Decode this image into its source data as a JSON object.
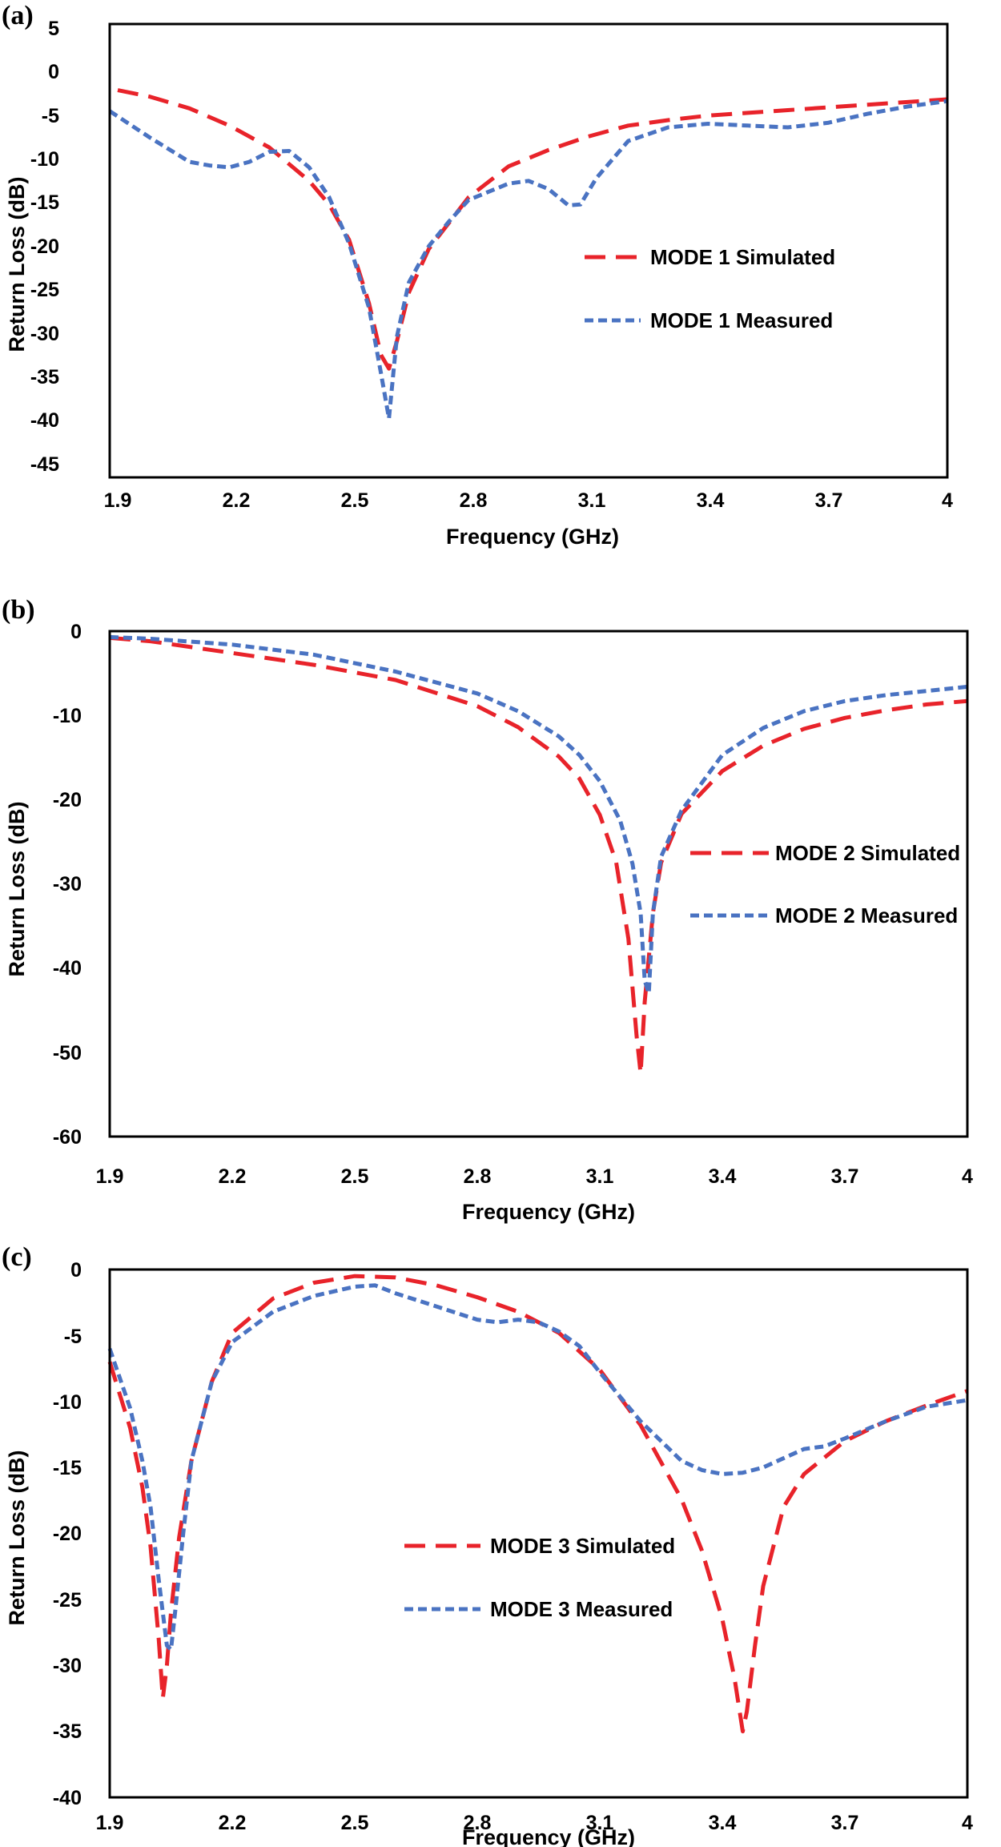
{
  "colors": {
    "simulated": "#e8232a",
    "measured": "#4a73c2",
    "axis": "#000000"
  },
  "chart_data": [
    {
      "type": "line",
      "panel_label": "(a)",
      "xlabel": "Frequency (GHz)",
      "ylabel": "Return Loss (dB)",
      "xlim": [
        1.9,
        4.0
      ],
      "ylim": [
        -45,
        5
      ],
      "xticks": [
        1.9,
        2.2,
        2.5,
        2.8,
        3.1,
        3.4,
        3.7,
        4.0
      ],
      "xtick_labels": [
        "1.9",
        "2.2",
        "2.5",
        "2.8",
        "3.1",
        "3.4",
        "3.7",
        "4"
      ],
      "yticks": [
        5,
        0,
        -5,
        -10,
        -15,
        -20,
        -25,
        -30,
        -35,
        -40,
        -45
      ],
      "ytick_labels": [
        "5",
        "0",
        "-5",
        "-10",
        "-15",
        "-20",
        "-25",
        "-30",
        "-35",
        "-40",
        "-45"
      ],
      "grid": false,
      "legend_position": "right-middle",
      "series": [
        {
          "name": "MODE 1 Simulated",
          "style": "dashed-long",
          "color": "#e8232a",
          "x": [
            1.92,
            2.0,
            2.1,
            2.2,
            2.3,
            2.4,
            2.45,
            2.5,
            2.55,
            2.58,
            2.6,
            2.62,
            2.65,
            2.7,
            2.8,
            2.9,
            3.0,
            3.1,
            3.2,
            3.3,
            3.4,
            3.5,
            3.6,
            3.7,
            3.8,
            3.9,
            4.0
          ],
          "y": [
            -2.3,
            -3.0,
            -4.3,
            -6.2,
            -8.6,
            -12.3,
            -14.9,
            -18.8,
            -25.8,
            -31.5,
            -33.0,
            -30.0,
            -24.6,
            -19.8,
            -14.1,
            -10.7,
            -8.9,
            -7.4,
            -6.2,
            -5.6,
            -5.1,
            -4.8,
            -4.5,
            -4.2,
            -3.9,
            -3.6,
            -3.3
          ]
        },
        {
          "name": "MODE 1 Measured",
          "style": "dashed-short",
          "color": "#4a73c2",
          "x": [
            1.9,
            2.0,
            2.1,
            2.15,
            2.2,
            2.25,
            2.3,
            2.35,
            2.4,
            2.45,
            2.5,
            2.55,
            2.58,
            2.6,
            2.62,
            2.65,
            2.7,
            2.75,
            2.8,
            2.9,
            2.95,
            3.0,
            3.05,
            3.08,
            3.12,
            3.2,
            3.3,
            3.4,
            3.5,
            3.6,
            3.7,
            3.8,
            3.9,
            4.0
          ],
          "y": [
            -4.6,
            -7.5,
            -10.2,
            -10.6,
            -10.8,
            -10.2,
            -9.1,
            -9.0,
            -10.8,
            -14.1,
            -19.2,
            -26.3,
            -33.5,
            -38.5,
            -29.5,
            -23.5,
            -19.5,
            -16.8,
            -14.4,
            -12.6,
            -12.3,
            -13.2,
            -15.0,
            -14.9,
            -12.0,
            -7.9,
            -6.4,
            -6.0,
            -6.2,
            -6.4,
            -5.9,
            -4.9,
            -4.1,
            -3.5
          ]
        }
      ]
    },
    {
      "type": "line",
      "panel_label": "(b)",
      "xlabel": "Frequency (GHz)",
      "ylabel": "Return Loss (dB)",
      "xlim": [
        1.9,
        4.0
      ],
      "ylim": [
        -60,
        0
      ],
      "xticks": [
        1.9,
        2.2,
        2.5,
        2.8,
        3.1,
        3.4,
        3.7,
        4.0
      ],
      "xtick_labels": [
        "1.9",
        "2.2",
        "2.5",
        "2.8",
        "3.1",
        "3.4",
        "3.7",
        "4"
      ],
      "yticks": [
        0,
        -10,
        -20,
        -30,
        -40,
        -50,
        -60
      ],
      "ytick_labels": [
        "0",
        "-10",
        "-20",
        "-30",
        "-40",
        "-50",
        "-60"
      ],
      "grid": false,
      "legend_position": "right-middle",
      "series": [
        {
          "name": "MODE 2 Simulated",
          "style": "dashed-long",
          "color": "#e8232a",
          "x": [
            1.9,
            2.0,
            2.2,
            2.4,
            2.6,
            2.8,
            2.9,
            3.0,
            3.05,
            3.1,
            3.14,
            3.17,
            3.19,
            3.2,
            3.21,
            3.23,
            3.25,
            3.3,
            3.4,
            3.5,
            3.6,
            3.7,
            3.8,
            3.9,
            4.0
          ],
          "y": [
            -0.8,
            -1.2,
            -2.6,
            -4.0,
            -5.8,
            -8.9,
            -11.4,
            -14.9,
            -17.5,
            -21.8,
            -27.4,
            -36.5,
            -48.0,
            -52.5,
            -44.0,
            -33.5,
            -27.5,
            -21.7,
            -16.6,
            -13.6,
            -11.6,
            -10.3,
            -9.4,
            -8.7,
            -8.3
          ]
        },
        {
          "name": "MODE 2 Measured",
          "style": "dashed-short",
          "color": "#4a73c2",
          "x": [
            1.9,
            2.0,
            2.2,
            2.4,
            2.6,
            2.8,
            2.9,
            3.0,
            3.05,
            3.1,
            3.15,
            3.18,
            3.2,
            3.21,
            3.22,
            3.23,
            3.25,
            3.3,
            3.4,
            3.5,
            3.6,
            3.7,
            3.8,
            3.9,
            4.0
          ],
          "y": [
            -0.7,
            -0.9,
            -1.6,
            -2.8,
            -4.8,
            -7.4,
            -9.5,
            -12.5,
            -14.7,
            -17.8,
            -22.5,
            -27.6,
            -33.5,
            -41.5,
            -43.0,
            -33.5,
            -26.8,
            -21.3,
            -14.7,
            -11.5,
            -9.5,
            -8.3,
            -7.6,
            -7.1,
            -6.6
          ]
        }
      ]
    },
    {
      "type": "line",
      "panel_label": "(c)",
      "xlabel": "Frequency (GHz)",
      "ylabel": "Return Loss (dB)",
      "xlim": [
        1.9,
        4.0
      ],
      "ylim": [
        -40,
        0
      ],
      "xticks": [
        1.9,
        2.2,
        2.5,
        2.8,
        3.1,
        3.4,
        3.7,
        4.0
      ],
      "xtick_labels": [
        "1.9",
        "2.2",
        "2.5",
        "2.8",
        "3.1",
        "3.4",
        "3.7",
        "4"
      ],
      "yticks": [
        0,
        -5,
        -10,
        -15,
        -20,
        -25,
        -30,
        -35,
        -40
      ],
      "ytick_labels": [
        "0",
        "-5",
        "-10",
        "-15",
        "-20",
        "-25",
        "-30",
        "-35",
        "-40"
      ],
      "grid": false,
      "legend_position": "center",
      "series": [
        {
          "name": "MODE 3 Simulated",
          "style": "dashed-long",
          "color": "#e8232a",
          "x": [
            1.9,
            1.95,
            1.98,
            2.0,
            2.02,
            2.03,
            2.04,
            2.05,
            2.07,
            2.1,
            2.15,
            2.2,
            2.3,
            2.4,
            2.5,
            2.6,
            2.7,
            2.8,
            2.9,
            3.0,
            3.1,
            3.2,
            3.3,
            3.35,
            3.4,
            3.43,
            3.45,
            3.46,
            3.48,
            3.5,
            3.55,
            3.6,
            3.7,
            3.8,
            3.9,
            4.0
          ],
          "y": [
            -7.0,
            -12.0,
            -16.5,
            -21.0,
            -28.0,
            -32.5,
            -30.0,
            -26.0,
            -20.3,
            -14.5,
            -8.5,
            -4.8,
            -2.2,
            -1.0,
            -0.5,
            -0.6,
            -1.2,
            -2.1,
            -3.2,
            -4.8,
            -7.6,
            -11.8,
            -17.4,
            -21.3,
            -26.5,
            -31.0,
            -35.0,
            -33.5,
            -28.5,
            -24.0,
            -18.0,
            -15.5,
            -13.0,
            -11.5,
            -10.3,
            -9.2
          ]
        },
        {
          "name": "MODE 3 Measured",
          "style": "dashed-short",
          "color": "#4a73c2",
          "x": [
            1.9,
            1.95,
            1.98,
            2.0,
            2.02,
            2.04,
            2.05,
            2.06,
            2.08,
            2.1,
            2.15,
            2.2,
            2.3,
            2.4,
            2.5,
            2.55,
            2.6,
            2.7,
            2.8,
            2.85,
            2.9,
            2.95,
            3.0,
            3.05,
            3.1,
            3.2,
            3.3,
            3.35,
            3.4,
            3.45,
            3.5,
            3.6,
            3.65,
            3.7,
            3.8,
            3.9,
            4.0
          ],
          "y": [
            -6.0,
            -10.5,
            -14.5,
            -18.0,
            -23.5,
            -28.5,
            -28.8,
            -26.0,
            -20.0,
            -14.5,
            -8.5,
            -5.5,
            -3.2,
            -2.0,
            -1.3,
            -1.2,
            -1.8,
            -2.8,
            -3.8,
            -4.0,
            -3.8,
            -4.0,
            -4.7,
            -5.8,
            -7.8,
            -11.5,
            -14.5,
            -15.2,
            -15.5,
            -15.4,
            -15.0,
            -13.6,
            -13.4,
            -12.8,
            -11.5,
            -10.4,
            -9.9
          ]
        }
      ]
    }
  ]
}
